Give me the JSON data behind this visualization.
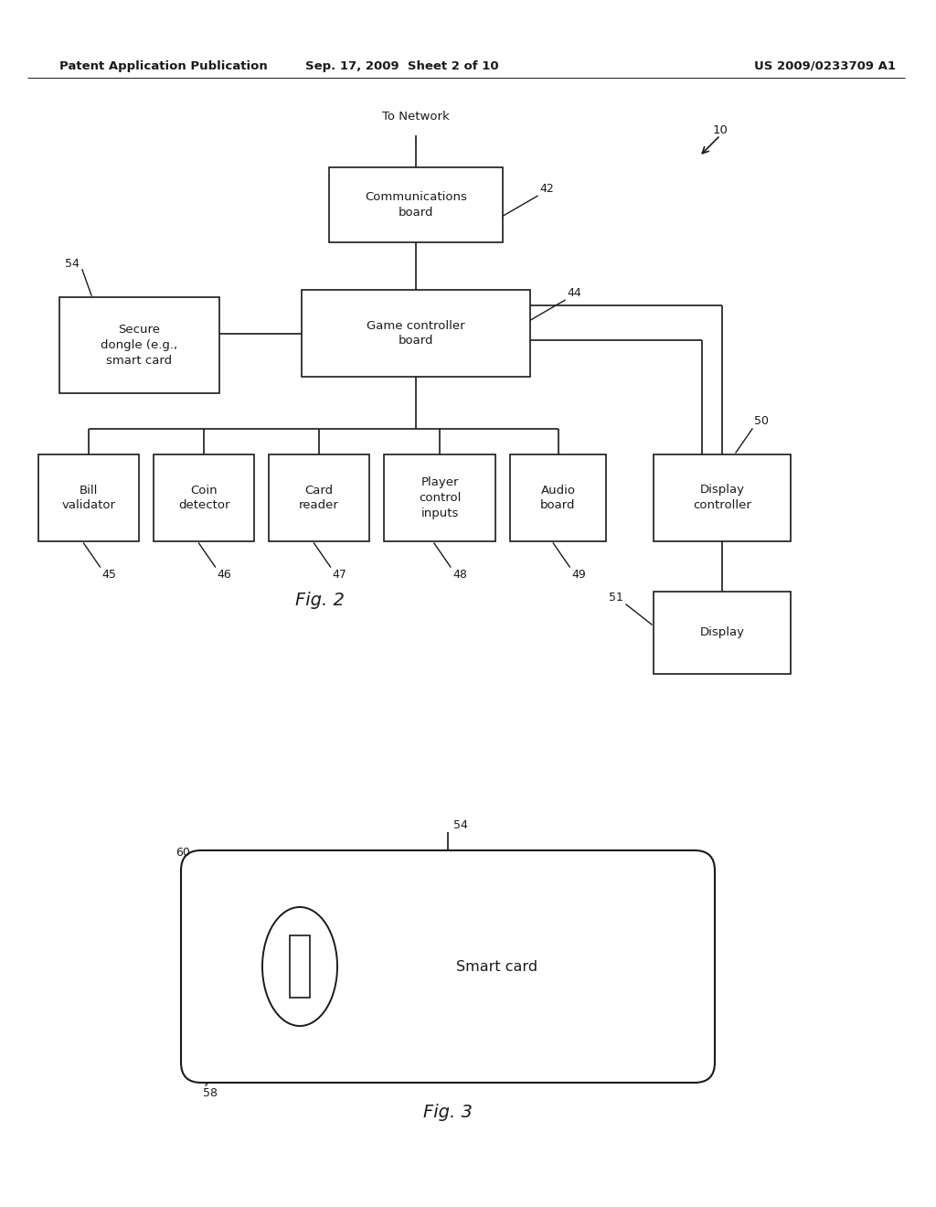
{
  "bg_color": "#ffffff",
  "line_color": "#1a1a1a",
  "text_color": "#1a1a1a",
  "header_left": "Patent Application Publication",
  "header_mid": "Sep. 17, 2009  Sheet 2 of 10",
  "header_right": "US 2009/0233709 A1",
  "fig2_label": "Fig. 2",
  "fig3_label": "Fig. 3"
}
